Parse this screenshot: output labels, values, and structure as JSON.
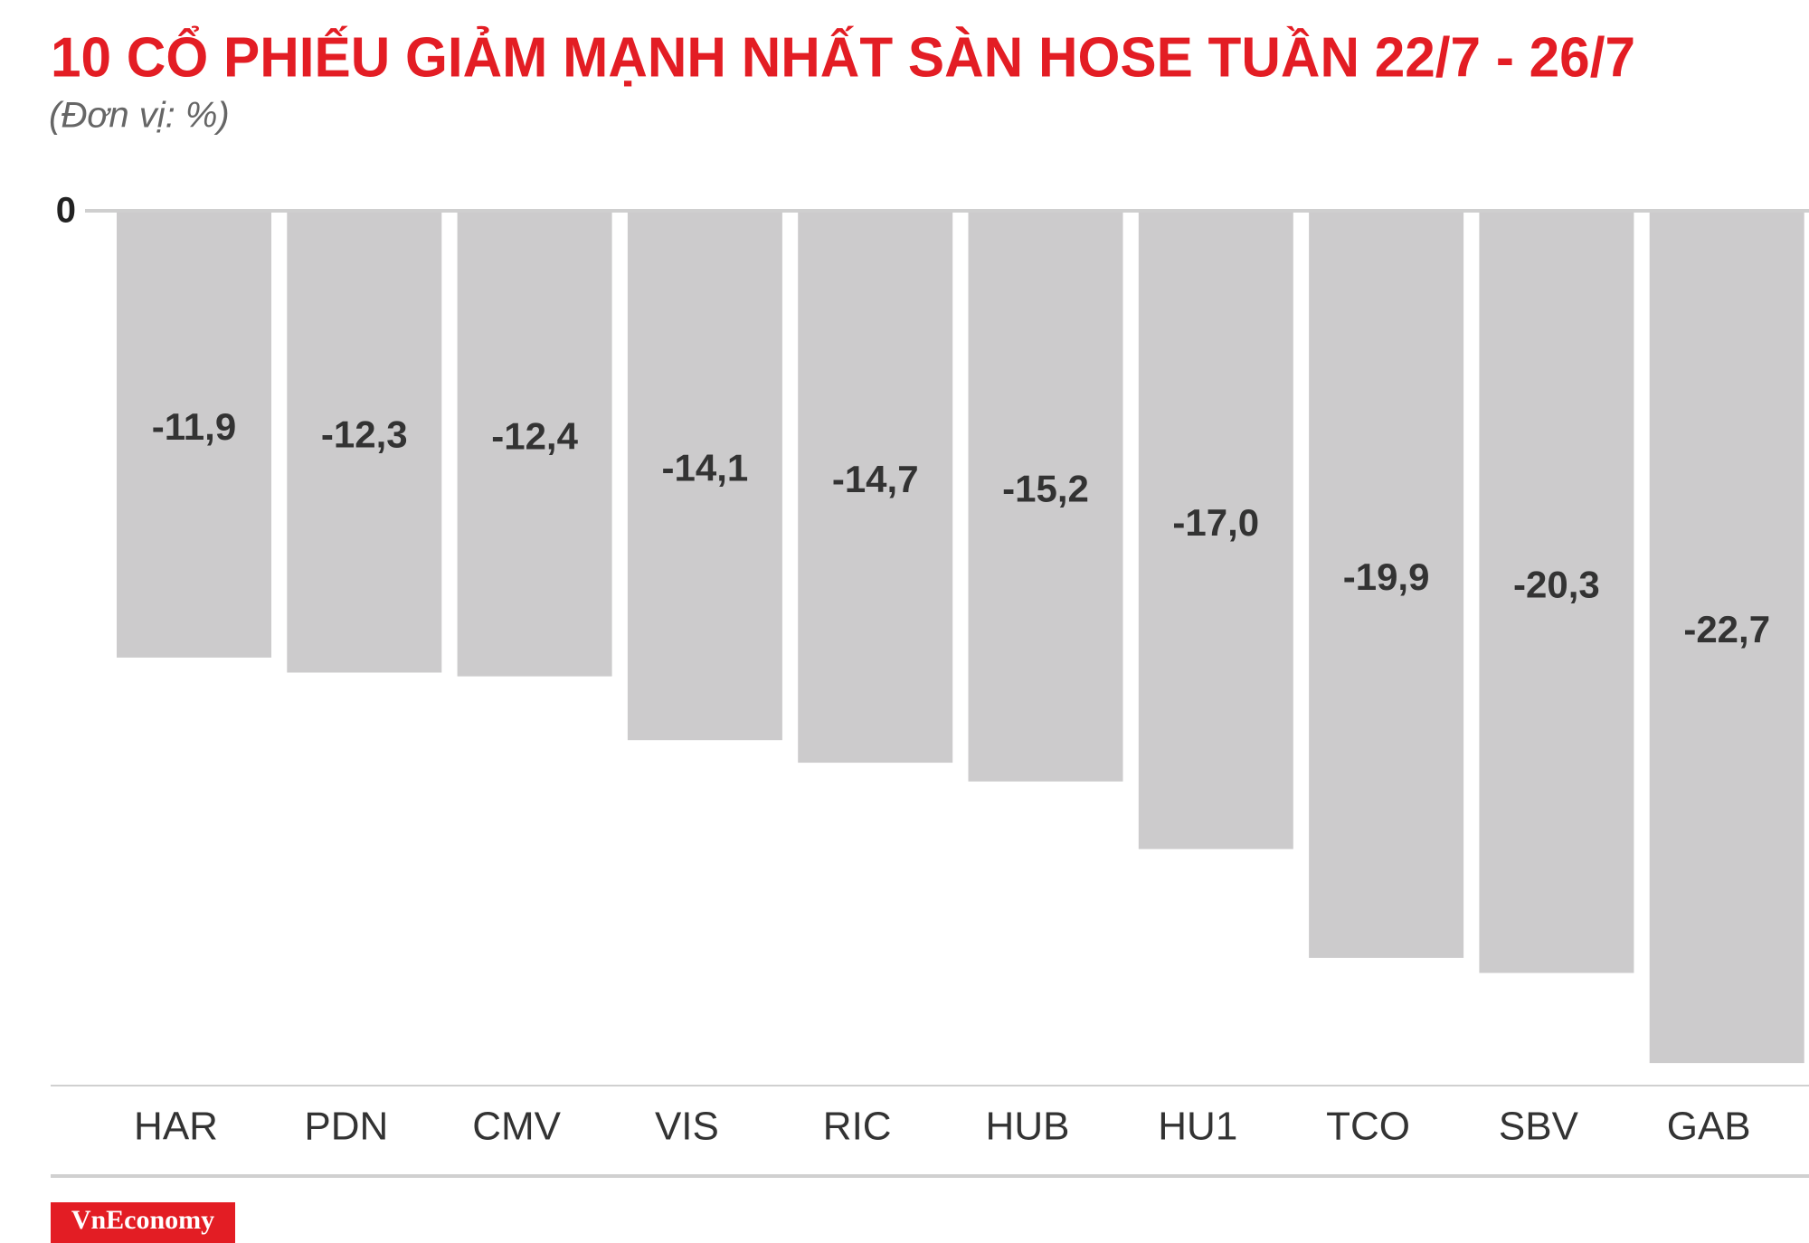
{
  "chart_data": {
    "type": "bar",
    "title": "10 CỔ PHIẾU GIẢM MẠNH NHẤT SÀN HOSE TUẦN 22/7 - 26/7",
    "subtitle": "(Đơn vị: %)",
    "categories": [
      "HAR",
      "PDN",
      "CMV",
      "VIS",
      "RIC",
      "HUB",
      "HU1",
      "TCO",
      "SBV",
      "GAB"
    ],
    "values": [
      -11.9,
      -12.3,
      -12.4,
      -14.1,
      -14.7,
      -15.2,
      -17.0,
      -19.9,
      -20.3,
      -22.7
    ],
    "value_labels": [
      "-11,9",
      "-12,3",
      "-12,4",
      "-14,1",
      "-14,7",
      "-15,2",
      "-17,0",
      "-19,9",
      "-20,3",
      "-22,7"
    ],
    "color": "#cccbcc",
    "ylim": [
      -23.3,
      0
    ],
    "yticks": [
      0
    ],
    "logo": "VnEconomy"
  }
}
